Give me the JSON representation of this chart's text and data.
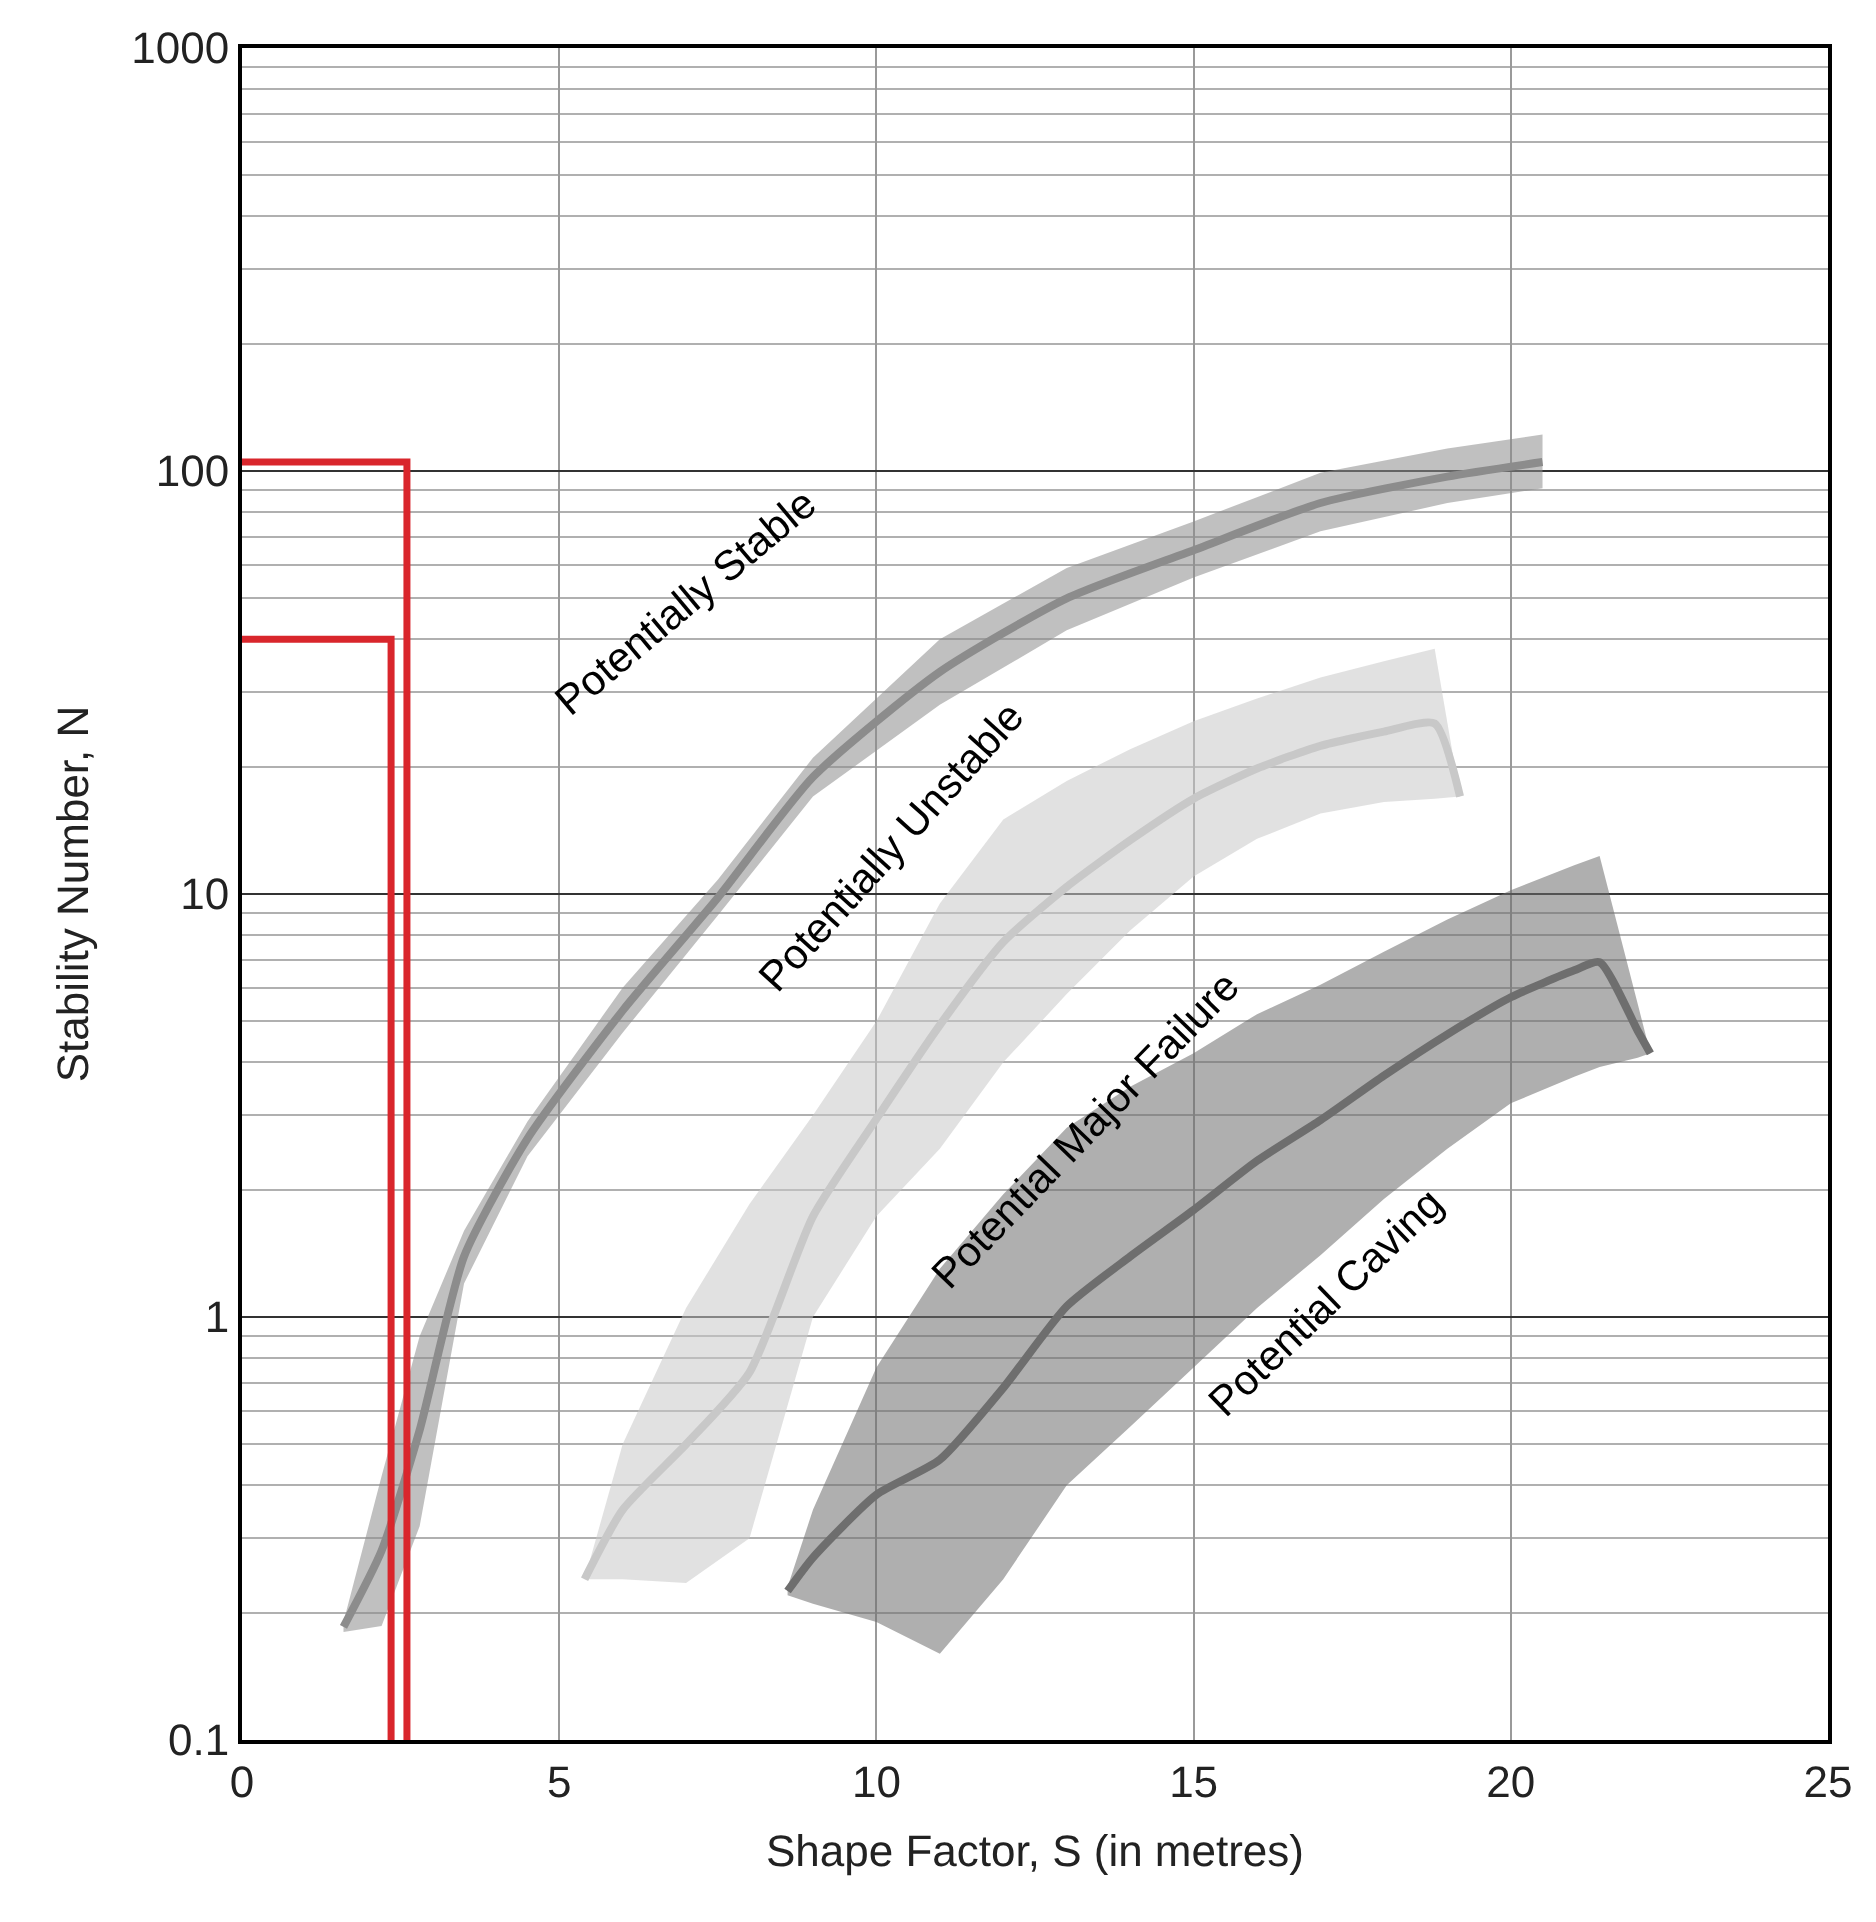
{
  "chart_data": {
    "type": "line",
    "xlabel": "Shape Factor, S (in metres)",
    "ylabel": "Stability Number, N",
    "log": "y",
    "grid": true,
    "xlim": [
      0,
      25
    ],
    "xticks": [
      0,
      5,
      10,
      15,
      20,
      25
    ],
    "ylim": [
      0.1,
      1000
    ],
    "yticks": [
      0.1,
      1,
      10,
      100,
      1000
    ],
    "series": [
      {
        "color": "#8c8c8c",
        "x": [
          1.6,
          2.2,
          2.8,
          3.5,
          4.5,
          6,
          7.5,
          9,
          11,
          13,
          15,
          17,
          19,
          20.5
        ],
        "values": [
          0.185,
          0.28,
          0.54,
          1.39,
          2.64,
          5.3,
          9.8,
          18.9,
          33.5,
          50,
          65,
          84,
          97,
          105
        ],
        "upper": [
          0.19,
          0.42,
          0.9,
          1.6,
          2.9,
          6.0,
          10.8,
          21,
          40,
          59,
          76,
          99,
          113,
          122
        ],
        "lower": [
          0.18,
          0.186,
          0.32,
          1.2,
          2.4,
          4.7,
          8.9,
          17,
          28,
          42,
          56,
          72,
          84,
          91
        ]
      },
      {
        "color": "#c8c8c8",
        "x": [
          5.4,
          6,
          7,
          8,
          9,
          10,
          11,
          12,
          13,
          14,
          15,
          16,
          17,
          18,
          18.8,
          19.2
        ],
        "values": [
          0.24,
          0.35,
          0.5,
          0.74,
          1.73,
          2.94,
          4.9,
          7.7,
          10.4,
          13.4,
          16.8,
          19.8,
          22.4,
          24.2,
          25.3,
          17
        ],
        "upper": [
          0.24,
          0.5,
          1.05,
          1.85,
          3.0,
          5.0,
          9.5,
          15,
          18.5,
          22,
          25.6,
          29,
          32.5,
          35.5,
          38,
          17
        ],
        "lower": [
          0.24,
          0.24,
          0.235,
          0.3,
          1.0,
          1.73,
          2.5,
          4.0,
          5.8,
          8.2,
          11,
          13.5,
          15.5,
          16.5,
          16.8,
          17
        ]
      },
      {
        "color": "#6e6e6e",
        "x": [
          8.6,
          9,
          10,
          11,
          12,
          13,
          14,
          15,
          16,
          17,
          18,
          19,
          20,
          21,
          21.4,
          22,
          22.2
        ],
        "values": [
          0.225,
          0.27,
          0.38,
          0.46,
          0.68,
          1.06,
          1.39,
          1.79,
          2.34,
          2.92,
          3.72,
          4.66,
          5.7,
          6.6,
          6.9,
          4.75,
          4.2
        ],
        "upper": [
          0.23,
          0.35,
          0.76,
          1.3,
          1.95,
          2.8,
          3.5,
          4.2,
          5.2,
          6.1,
          7.3,
          8.7,
          10.2,
          11.7,
          12.3,
          5.5,
          4.2
        ],
        "lower": [
          0.22,
          0.21,
          0.19,
          0.16,
          0.24,
          0.4,
          0.55,
          0.76,
          1.05,
          1.4,
          1.9,
          2.5,
          3.2,
          3.7,
          3.9,
          4.1,
          4.2
        ]
      },
      {
        "type": "line",
        "color": "#d9262c",
        "x": [
          0,
          2.6,
          2.6
        ],
        "values": [
          105,
          105,
          0.1
        ]
      },
      {
        "type": "line",
        "color": "#d9262c",
        "x": [
          0,
          2.35,
          2.35
        ],
        "values": [
          40,
          40,
          0.1
        ]
      }
    ],
    "annotations": [
      "Potentially Stable",
      "Potentially Unstable",
      "Potential Major Failure",
      "Potential Caving"
    ]
  }
}
